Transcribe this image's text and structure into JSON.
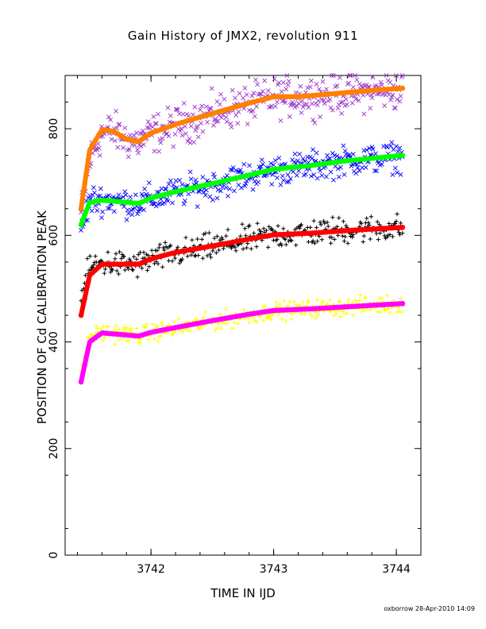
{
  "chart_data": {
    "type": "scatter",
    "title": "Gain History of JMX2, revolution 911",
    "xlabel": "TIME IN IJD",
    "ylabel": "POSITION OF Cd CALIBRATION PEAK",
    "xlim": [
      3741.3,
      3744.2
    ],
    "ylim": [
      0,
      900
    ],
    "xticks": [
      3742,
      3743,
      3744
    ],
    "xtick_labels": [
      "3742",
      "3743",
      "3744"
    ],
    "yticks": [
      0,
      200,
      400,
      600,
      800
    ],
    "ytick_labels": [
      "0",
      "200",
      "400",
      "600",
      "800"
    ],
    "grid": false,
    "series": [
      {
        "color": "#9933cc",
        "marker": "x",
        "scatter": 40,
        "values": [
          {
            "x": 3741.43,
            "y": 640
          },
          {
            "x": 3741.5,
            "y": 740
          },
          {
            "x": 3741.6,
            "y": 792
          },
          {
            "x": 3741.7,
            "y": 795
          },
          {
            "x": 3741.8,
            "y": 780
          },
          {
            "x": 3741.9,
            "y": 775
          },
          {
            "x": 3742.0,
            "y": 790
          },
          {
            "x": 3742.2,
            "y": 805
          },
          {
            "x": 3742.4,
            "y": 820
          },
          {
            "x": 3742.6,
            "y": 835
          },
          {
            "x": 3742.8,
            "y": 845
          },
          {
            "x": 3743.0,
            "y": 858
          },
          {
            "x": 3743.2,
            "y": 860
          },
          {
            "x": 3743.5,
            "y": 865
          },
          {
            "x": 3743.8,
            "y": 870
          },
          {
            "x": 3744.05,
            "y": 872
          }
        ]
      },
      {
        "color": "#0000ff",
        "marker": "x",
        "scatter": 30,
        "values": [
          {
            "x": 3741.43,
            "y": 610
          },
          {
            "x": 3741.5,
            "y": 665
          },
          {
            "x": 3741.6,
            "y": 668
          },
          {
            "x": 3741.8,
            "y": 662
          },
          {
            "x": 3741.9,
            "y": 660
          },
          {
            "x": 3742.0,
            "y": 668
          },
          {
            "x": 3742.2,
            "y": 680
          },
          {
            "x": 3742.5,
            "y": 695
          },
          {
            "x": 3742.8,
            "y": 712
          },
          {
            "x": 3743.0,
            "y": 722
          },
          {
            "x": 3743.3,
            "y": 730
          },
          {
            "x": 3743.6,
            "y": 740
          },
          {
            "x": 3744.05,
            "y": 748
          }
        ]
      },
      {
        "color": "#000000",
        "marker": "+",
        "scatter": 28,
        "values": [
          {
            "x": 3741.43,
            "y": 480
          },
          {
            "x": 3741.5,
            "y": 540
          },
          {
            "x": 3741.6,
            "y": 548
          },
          {
            "x": 3741.8,
            "y": 545
          },
          {
            "x": 3741.9,
            "y": 545
          },
          {
            "x": 3742.0,
            "y": 555
          },
          {
            "x": 3742.2,
            "y": 565
          },
          {
            "x": 3742.5,
            "y": 578
          },
          {
            "x": 3742.8,
            "y": 592
          },
          {
            "x": 3743.0,
            "y": 600
          },
          {
            "x": 3743.3,
            "y": 605
          },
          {
            "x": 3743.6,
            "y": 610
          },
          {
            "x": 3744.05,
            "y": 615
          }
        ]
      },
      {
        "color": "#ffff00",
        "marker": "+",
        "scatter": 18,
        "values": [
          {
            "x": 3741.43,
            "y": 340
          },
          {
            "x": 3741.5,
            "y": 410
          },
          {
            "x": 3741.6,
            "y": 418
          },
          {
            "x": 3741.8,
            "y": 415
          },
          {
            "x": 3741.9,
            "y": 412
          },
          {
            "x": 3742.0,
            "y": 418
          },
          {
            "x": 3742.2,
            "y": 425
          },
          {
            "x": 3742.5,
            "y": 438
          },
          {
            "x": 3742.8,
            "y": 450
          },
          {
            "x": 3743.0,
            "y": 458
          },
          {
            "x": 3743.3,
            "y": 462
          },
          {
            "x": 3743.6,
            "y": 466
          },
          {
            "x": 3744.05,
            "y": 472
          }
        ]
      }
    ],
    "fits": [
      {
        "color": "#ff7f00",
        "values": [
          {
            "x": 3741.43,
            "y": 650
          },
          {
            "x": 3741.5,
            "y": 760
          },
          {
            "x": 3741.6,
            "y": 798
          },
          {
            "x": 3741.7,
            "y": 795
          },
          {
            "x": 3741.8,
            "y": 780
          },
          {
            "x": 3741.9,
            "y": 776
          },
          {
            "x": 3742.0,
            "y": 792
          },
          {
            "x": 3742.2,
            "y": 808
          },
          {
            "x": 3742.4,
            "y": 822
          },
          {
            "x": 3742.6,
            "y": 835
          },
          {
            "x": 3742.8,
            "y": 848
          },
          {
            "x": 3743.0,
            "y": 860
          },
          {
            "x": 3743.2,
            "y": 860
          },
          {
            "x": 3743.5,
            "y": 866
          },
          {
            "x": 3743.8,
            "y": 872
          },
          {
            "x": 3744.05,
            "y": 876
          }
        ]
      },
      {
        "color": "#00ff00",
        "values": [
          {
            "x": 3741.43,
            "y": 620
          },
          {
            "x": 3741.5,
            "y": 662
          },
          {
            "x": 3741.6,
            "y": 666
          },
          {
            "x": 3741.8,
            "y": 662
          },
          {
            "x": 3741.9,
            "y": 660
          },
          {
            "x": 3742.0,
            "y": 670
          },
          {
            "x": 3742.2,
            "y": 682
          },
          {
            "x": 3742.5,
            "y": 697
          },
          {
            "x": 3742.8,
            "y": 713
          },
          {
            "x": 3743.0,
            "y": 724
          },
          {
            "x": 3743.3,
            "y": 731
          },
          {
            "x": 3743.6,
            "y": 740
          },
          {
            "x": 3744.05,
            "y": 750
          }
        ]
      },
      {
        "color": "#ff0000",
        "values": [
          {
            "x": 3741.43,
            "y": 450
          },
          {
            "x": 3741.5,
            "y": 525
          },
          {
            "x": 3741.6,
            "y": 546
          },
          {
            "x": 3741.8,
            "y": 546
          },
          {
            "x": 3741.9,
            "y": 546
          },
          {
            "x": 3742.0,
            "y": 556
          },
          {
            "x": 3742.2,
            "y": 568
          },
          {
            "x": 3742.5,
            "y": 580
          },
          {
            "x": 3742.8,
            "y": 593
          },
          {
            "x": 3743.0,
            "y": 601
          },
          {
            "x": 3743.3,
            "y": 604
          },
          {
            "x": 3743.6,
            "y": 609
          },
          {
            "x": 3744.05,
            "y": 615
          }
        ]
      },
      {
        "color": "#ff00ff",
        "values": [
          {
            "x": 3741.43,
            "y": 325
          },
          {
            "x": 3741.5,
            "y": 400
          },
          {
            "x": 3741.6,
            "y": 417
          },
          {
            "x": 3741.8,
            "y": 413
          },
          {
            "x": 3741.9,
            "y": 411
          },
          {
            "x": 3742.0,
            "y": 418
          },
          {
            "x": 3742.2,
            "y": 427
          },
          {
            "x": 3742.5,
            "y": 440
          },
          {
            "x": 3742.8,
            "y": 452
          },
          {
            "x": 3743.0,
            "y": 459
          },
          {
            "x": 3743.3,
            "y": 462
          },
          {
            "x": 3743.6,
            "y": 466
          },
          {
            "x": 3744.05,
            "y": 472
          }
        ]
      }
    ]
  },
  "footer": {
    "credit": "oxborrow 28-Apr-2010 14:09"
  }
}
